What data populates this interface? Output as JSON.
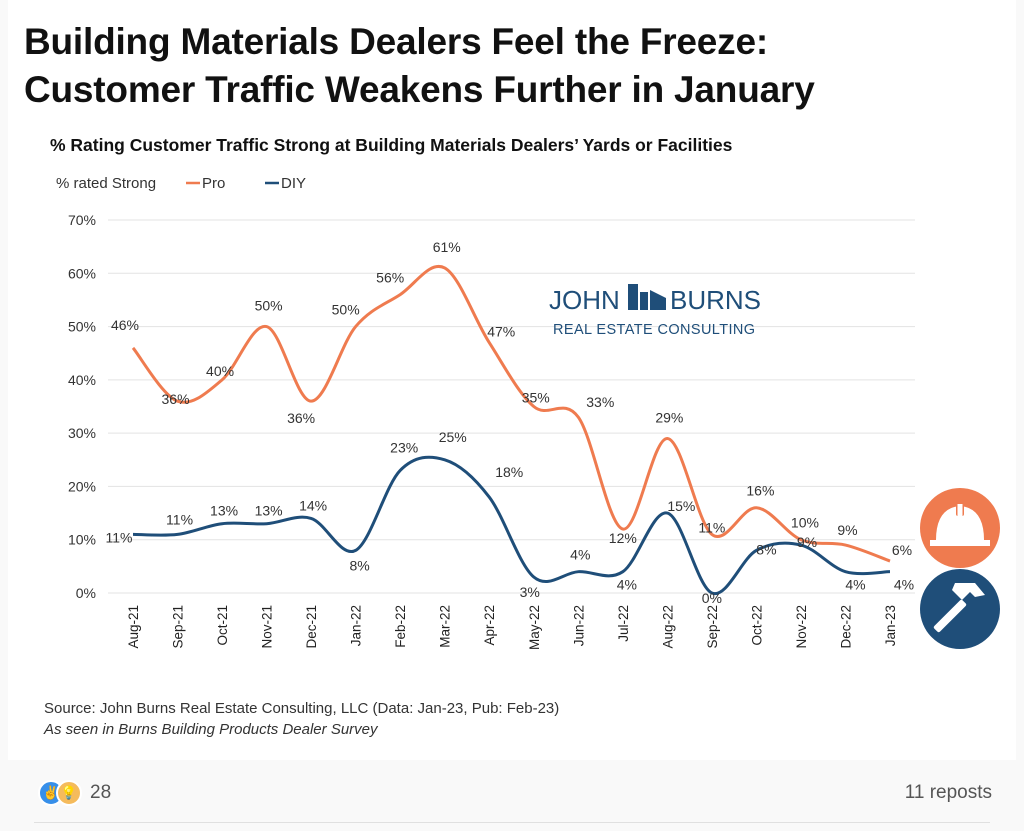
{
  "headline": {
    "line1": "Building Materials Dealers Feel the Freeze:",
    "line2": "Customer Traffic Weakens Further in January"
  },
  "chart_data": {
    "type": "line",
    "title": "% Rating Customer Traffic Strong at Building Materials Dealers’ Yards or Facilities",
    "legend_title": "% rated Strong",
    "legend_position": "top-left",
    "x": [
      "Aug-21",
      "Sep-21",
      "Oct-21",
      "Nov-21",
      "Dec-21",
      "Jan-22",
      "Feb-22",
      "Mar-22",
      "Apr-22",
      "May-22",
      "Jun-22",
      "Jul-22",
      "Aug-22",
      "Sep-22",
      "Oct-22",
      "Nov-22",
      "Dec-22",
      "Jan-23"
    ],
    "ylim": [
      0,
      70
    ],
    "yticks": [
      0,
      10,
      20,
      30,
      40,
      50,
      60,
      70
    ],
    "ytick_format": "percent",
    "grid": true,
    "series": [
      {
        "name": "Pro",
        "color": "#ef7b4f",
        "values": [
          46,
          36,
          40,
          50,
          36,
          50,
          56,
          61,
          47,
          35,
          33,
          12,
          29,
          11,
          16,
          10,
          9,
          6
        ]
      },
      {
        "name": "DIY",
        "color": "#1f4e79",
        "values": [
          11,
          11,
          13,
          13,
          14,
          8,
          23,
          25,
          18,
          3,
          4,
          4,
          15,
          0,
          8,
          9,
          4,
          4
        ]
      }
    ]
  },
  "logo": {
    "line1_left": "JOHN",
    "line1_right": "BURNS",
    "line2": "REAL ESTATE CONSULTING",
    "color": "#1f4e79"
  },
  "icons": {
    "pro": {
      "name": "hard-hat-icon",
      "color": "#ef7b4f"
    },
    "diy": {
      "name": "hammer-icon",
      "color": "#1f4e79"
    }
  },
  "source": {
    "line1": "Source: John Burns Real Estate Consulting, LLC (Data: Jan-23, Pub: Feb-23)",
    "line2": "As seen in Burns Building Products Dealer Survey"
  },
  "social": {
    "reaction_count": "28",
    "reposts": "11 reposts"
  }
}
